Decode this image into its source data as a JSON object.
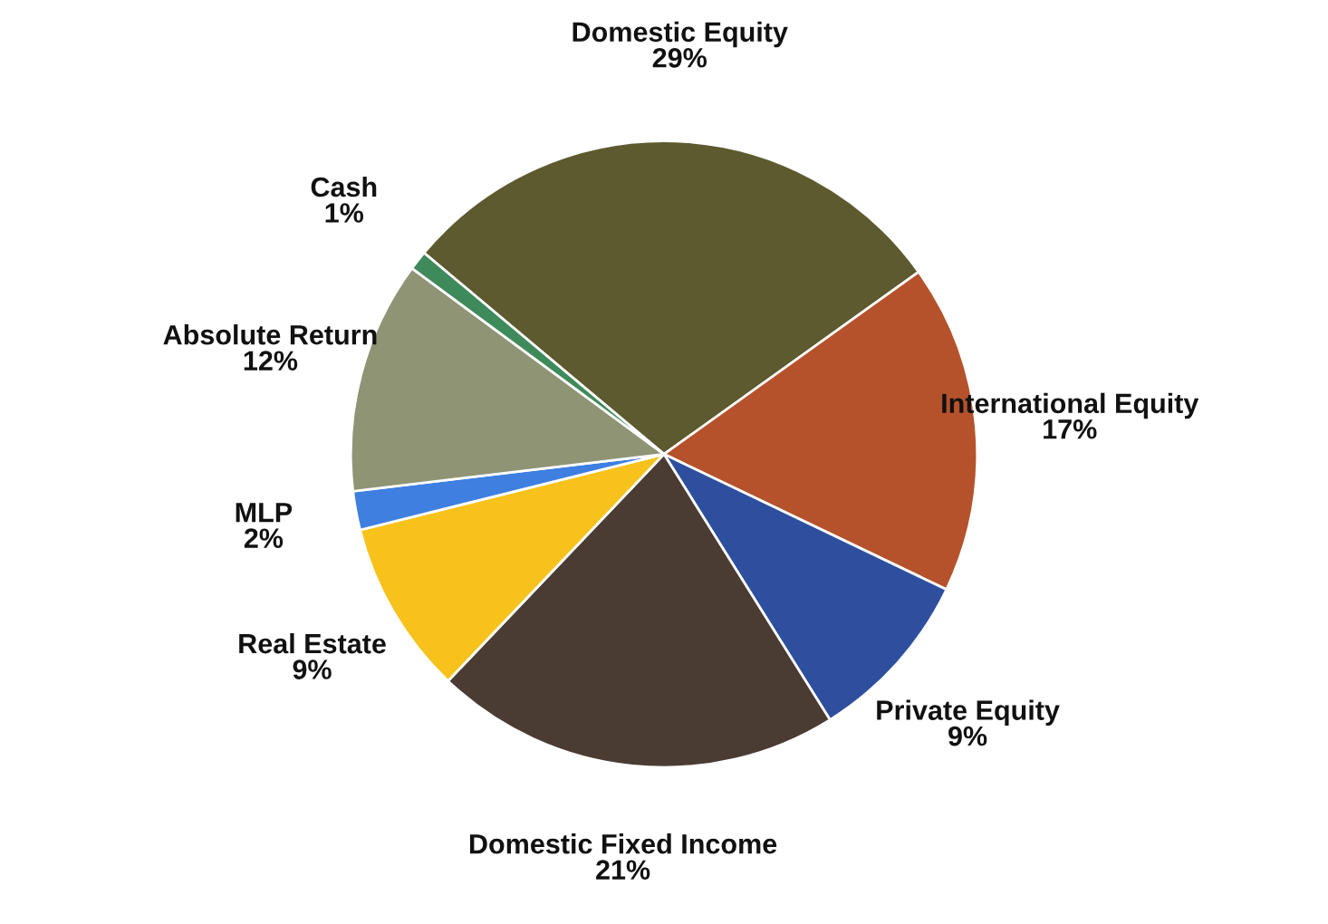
{
  "chart_data": {
    "type": "pie",
    "categories": [
      "Domestic Equity",
      "International Equity",
      "Private Equity",
      "Domestic Fixed Income",
      "Real Estate",
      "MLP",
      "Absolute Return",
      "Cash"
    ],
    "values": [
      29,
      17,
      9,
      21,
      9,
      2,
      12,
      1
    ],
    "colors": [
      "#5c5a2e",
      "#b5522c",
      "#2e4f9e",
      "#4a3c33",
      "#f7c21c",
      "#3e7fe0",
      "#8f9475",
      "#3f8a5a"
    ],
    "value_labels": [
      "29%",
      "17%",
      "9%",
      "21%",
      "9%",
      "2%",
      "12%",
      "1%"
    ],
    "legend": false
  }
}
